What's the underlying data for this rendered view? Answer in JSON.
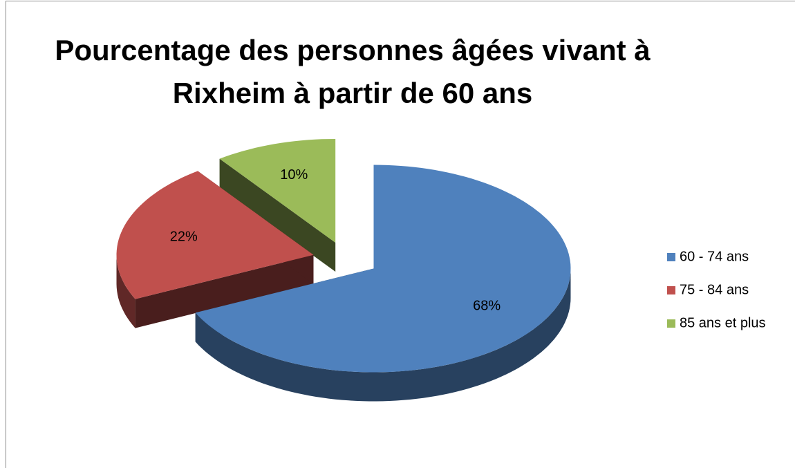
{
  "chart_data": {
    "type": "pie",
    "title": "Pourcentage des personnes âgées vivant à\nRixheim à partir de 60 ans",
    "categories": [
      "60 - 74 ans",
      "75 - 84 ans",
      "85 ans et plus"
    ],
    "values": [
      68,
      22,
      10
    ],
    "value_labels": [
      "68%",
      "22%",
      "10%"
    ],
    "colors": [
      "#4f81bd",
      "#c0504d",
      "#9bbb59"
    ],
    "legend": "right"
  }
}
